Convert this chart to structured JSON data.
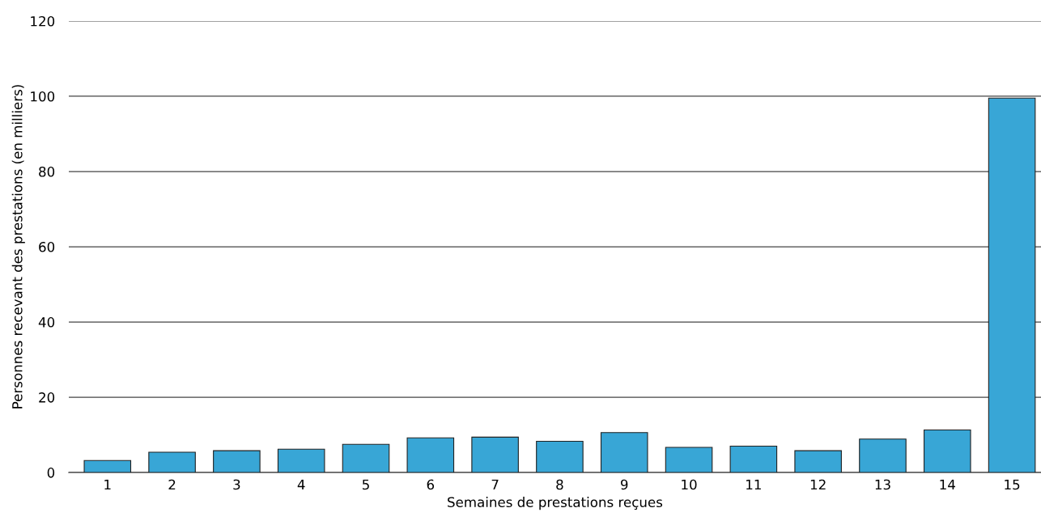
{
  "chart_data": {
    "type": "bar",
    "xlabel": "Semaines de prestations reçues",
    "ylabel": "Personnes recevant des prestations (en milliers)",
    "categories": [
      "1",
      "2",
      "3",
      "4",
      "5",
      "6",
      "7",
      "8",
      "9",
      "10",
      "11",
      "12",
      "13",
      "14",
      "15"
    ],
    "values": [
      3.2,
      5.4,
      5.8,
      6.2,
      7.5,
      9.2,
      9.4,
      8.3,
      10.6,
      6.7,
      7.0,
      5.8,
      8.9,
      11.3,
      99.5
    ],
    "color": "#38a6d6",
    "ylim": [
      0,
      120
    ],
    "yticks": [
      0,
      20,
      40,
      60,
      80,
      100,
      120
    ],
    "grid": "y"
  }
}
